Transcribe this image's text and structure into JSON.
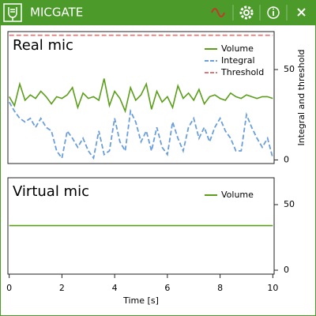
{
  "window": {
    "title": "MICGATE"
  },
  "chart_data": [
    {
      "type": "line",
      "title": "Real mic",
      "y_label": "Integral and threshold",
      "legend": "upper right",
      "xlim": [
        -0.05,
        10.05
      ],
      "ylim": [
        -2,
        71
      ],
      "yticks": [
        0,
        50
      ],
      "x": [
        0,
        0.2,
        0.4,
        0.6,
        0.8,
        1,
        1.2,
        1.4,
        1.6,
        1.8,
        2,
        2.2,
        2.4,
        2.6,
        2.8,
        3,
        3.2,
        3.4,
        3.6,
        3.8,
        4,
        4.2,
        4.4,
        4.6,
        4.8,
        5,
        5.2,
        5.4,
        5.6,
        5.8,
        6,
        6.2,
        6.4,
        6.6,
        6.8,
        7,
        7.2,
        7.4,
        7.6,
        7.8,
        8,
        8.2,
        8.4,
        8.6,
        8.8,
        9,
        9.2,
        9.4,
        9.6,
        9.8,
        10
      ],
      "series": [
        {
          "name": "Volume",
          "color": "#5a9e1a",
          "linestyle": "solid",
          "values": [
            35,
            30,
            42,
            33,
            36,
            34,
            38,
            35,
            31,
            35,
            34,
            36,
            40,
            29,
            37,
            34,
            35,
            33,
            45,
            30,
            38,
            34,
            27,
            40,
            33,
            36,
            42,
            28,
            38,
            32,
            35,
            29,
            41,
            34,
            37,
            33,
            39,
            31,
            35,
            36,
            34,
            33,
            37,
            35,
            34,
            36,
            35,
            34,
            35,
            35,
            34
          ]
        },
        {
          "name": "Integral",
          "color": "#6a9edc",
          "linestyle": "dashed",
          "values": [
            32,
            27,
            23,
            21,
            23,
            18,
            23,
            18,
            16,
            5,
            1,
            16,
            12,
            7,
            12,
            5,
            1,
            16,
            3,
            5,
            23,
            10,
            5,
            27,
            21,
            10,
            16,
            5,
            18,
            7,
            3,
            21,
            12,
            5,
            18,
            23,
            12,
            18,
            10,
            18,
            23,
            16,
            12,
            5,
            5,
            25,
            18,
            12,
            7,
            12,
            1
          ]
        },
        {
          "name": "Threshold",
          "color": "#d97a7a",
          "linestyle": "dashed",
          "x": [
            0,
            10
          ],
          "values": [
            69,
            69
          ]
        }
      ]
    },
    {
      "type": "line",
      "title": "Virtual mic",
      "x_label": "Time [s]",
      "legend": "upper right",
      "xlim": [
        -0.05,
        10.05
      ],
      "ylim": [
        -3,
        70.5
      ],
      "yticks": [
        0,
        50
      ],
      "xticks": [
        0,
        2,
        4,
        6,
        8,
        10
      ],
      "series": [
        {
          "name": "Volume",
          "color": "#5a9e1a",
          "linestyle": "solid",
          "x": [
            0,
            10
          ],
          "values": [
            34,
            34
          ]
        }
      ]
    }
  ]
}
